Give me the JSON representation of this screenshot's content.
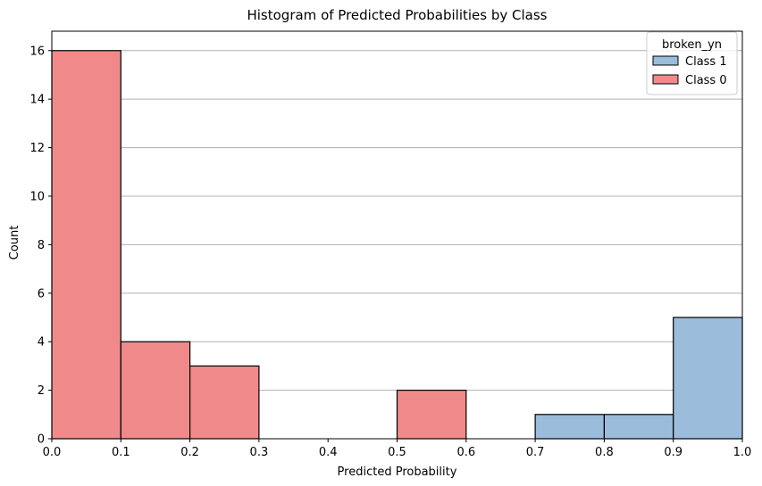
{
  "chart_data": {
    "type": "bar",
    "title": "Histogram of Predicted Probabilities by Class",
    "xlabel": "Predicted Probability",
    "ylabel": "Count",
    "xlim": [
      0.0,
      1.0
    ],
    "ylim": [
      0,
      16.8
    ],
    "x_ticks": [
      "0.0",
      "0.1",
      "0.2",
      "0.3",
      "0.4",
      "0.5",
      "0.6",
      "0.7",
      "0.8",
      "0.9",
      "1.0"
    ],
    "y_ticks": [
      "0",
      "2",
      "4",
      "6",
      "8",
      "10",
      "12",
      "14",
      "16"
    ],
    "grid": "horizontal",
    "bin_edges": [
      0.0,
      0.1,
      0.2,
      0.3,
      0.4,
      0.5,
      0.6,
      0.7,
      0.8,
      0.9,
      1.0
    ],
    "legend": {
      "title": "broken_yn",
      "position": "top-right"
    },
    "series": [
      {
        "name": "Class 1",
        "color": "#9bbcdb",
        "values": [
          0,
          0,
          0,
          0,
          0,
          0,
          0,
          1,
          1,
          5
        ]
      },
      {
        "name": "Class 0",
        "color": "#f08a8a",
        "values": [
          16,
          4,
          3,
          0,
          0,
          2,
          0,
          0,
          0,
          0
        ]
      }
    ]
  }
}
